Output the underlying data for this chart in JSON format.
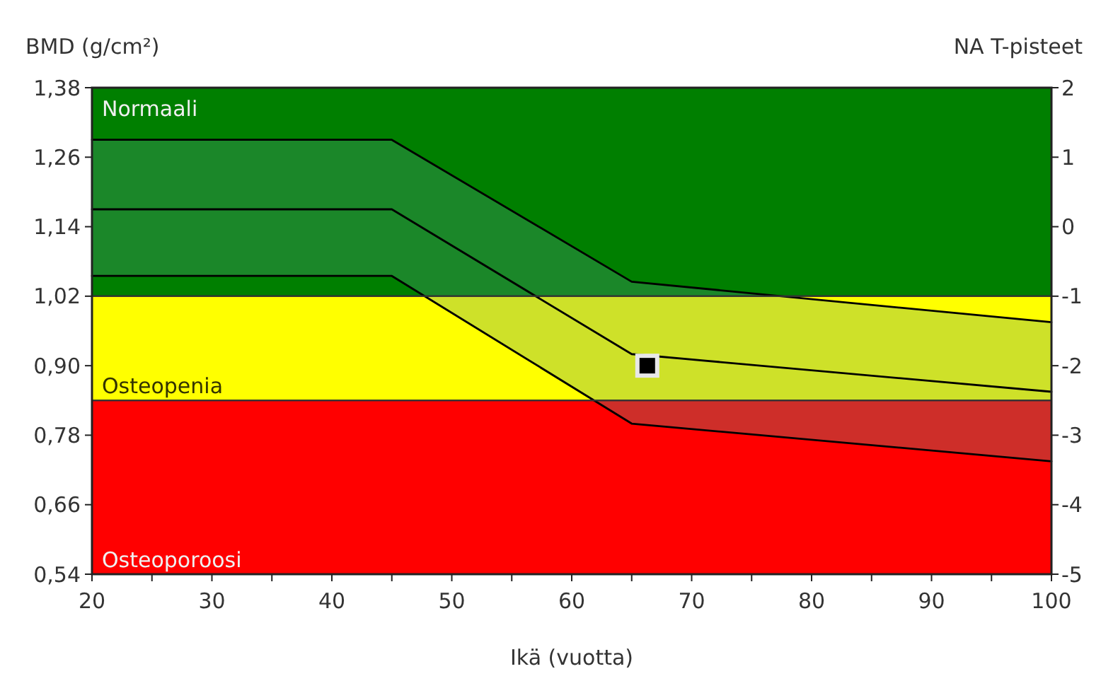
{
  "chart_data": {
    "type": "line",
    "xlabel": "Ikä (vuotta)",
    "ylabel": "BMD (g/cm²)",
    "y2label": "NA T-pisteet",
    "xlim": [
      20,
      100
    ],
    "xticks": [
      20,
      {
        "value": 25,
        "label": null
      },
      30,
      {
        "value": 35,
        "label": null
      },
      40,
      {
        "value": 45,
        "label": null
      },
      50,
      {
        "value": 55,
        "label": null
      },
      60,
      {
        "value": 65,
        "label": null
      },
      70,
      {
        "value": 75,
        "label": null
      },
      80,
      {
        "value": 85,
        "label": null
      },
      90,
      {
        "value": 95,
        "label": null
      },
      100
    ],
    "ylim": [
      0.54,
      1.38
    ],
    "yticks": [
      {
        "value": 0.54,
        "label": "0,54"
      },
      {
        "value": 0.66,
        "label": "0,66"
      },
      {
        "value": 0.78,
        "label": "0,78"
      },
      {
        "value": 0.9,
        "label": "0,90"
      },
      {
        "value": 1.02,
        "label": "1,02"
      },
      {
        "value": 1.14,
        "label": "1,14"
      },
      {
        "value": 1.26,
        "label": "1,26"
      },
      {
        "value": 1.38,
        "label": "1,38"
      }
    ],
    "y2lim": [
      -5,
      2
    ],
    "y2ticks": [
      -5,
      -4,
      -3,
      -2,
      -1,
      0,
      1,
      2
    ],
    "bands": [
      {
        "axis": "y",
        "from": 1.02,
        "to": 1.38,
        "label": "Normaali",
        "color": "#007f00"
      },
      {
        "axis": "y",
        "from": 0.84,
        "to": 1.02,
        "label": "Osteopenia",
        "color": "#ffff00"
      },
      {
        "axis": "y",
        "from": 0.54,
        "to": 0.84,
        "label": "Osteoporoosi",
        "color": "#ff0000"
      }
    ],
    "series": [
      {
        "color": "#000000",
        "x": [
          20,
          45,
          65,
          100
        ],
        "values": [
          1.17,
          1.17,
          0.92,
          0.855
        ],
        "lower": [
          1.055,
          1.055,
          0.8,
          0.735
        ],
        "upper": [
          1.29,
          1.29,
          1.045,
          0.975
        ]
      },
      {
        "color": "#000000",
        "x": [
          20,
          45,
          65,
          100
        ],
        "values": [
          1.29,
          1.29,
          1.045,
          0.975
        ]
      },
      {
        "color": "#000000",
        "x": [
          20,
          45,
          65,
          100
        ],
        "values": [
          1.055,
          1.055,
          0.8,
          0.735
        ]
      },
      {
        "type": "scatter",
        "color": "#000000",
        "marker": "square",
        "x": [
          66.3
        ],
        "values": [
          0.9
        ]
      }
    ]
  }
}
